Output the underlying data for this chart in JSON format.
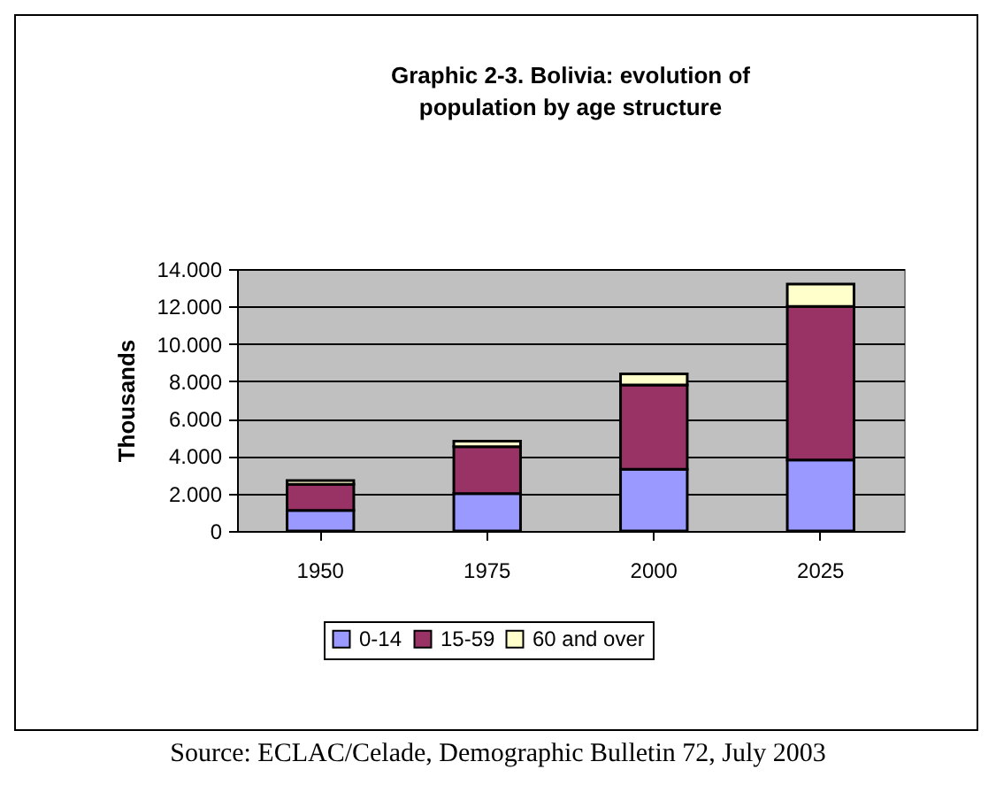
{
  "chart_data": {
    "type": "bar",
    "title": "Graphic 2-3. Bolivia: evolution of population by age structure",
    "ylabel": "Thousands",
    "categories": [
      "1950",
      "1975",
      "2000",
      "2025"
    ],
    "stacked": true,
    "series": [
      {
        "name": "0-14",
        "color": "#9999ff",
        "values": [
          1100,
          2000,
          3300,
          3800
        ]
      },
      {
        "name": "15-59",
        "color": "#993366",
        "values": [
          1400,
          2500,
          4500,
          8200
        ]
      },
      {
        "name": "60 and over",
        "color": "#ffffcc",
        "values": [
          200,
          300,
          600,
          1200
        ]
      }
    ],
    "ylim": [
      0,
      14000
    ],
    "yticks": [
      {
        "value": 0,
        "label": "0"
      },
      {
        "value": 2000,
        "label": "2.000"
      },
      {
        "value": 4000,
        "label": "4.000"
      },
      {
        "value": 6000,
        "label": "6.000"
      },
      {
        "value": 8000,
        "label": "8.000"
      },
      {
        "value": 10000,
        "label": "10.000"
      },
      {
        "value": 12000,
        "label": "12.000"
      },
      {
        "value": 14000,
        "label": "14.000"
      }
    ],
    "grid": "y",
    "legend": "bottom",
    "annotations": [
      "Source: ECLAC/Celade, Demographic Bulletin 72, July 2003"
    ]
  }
}
